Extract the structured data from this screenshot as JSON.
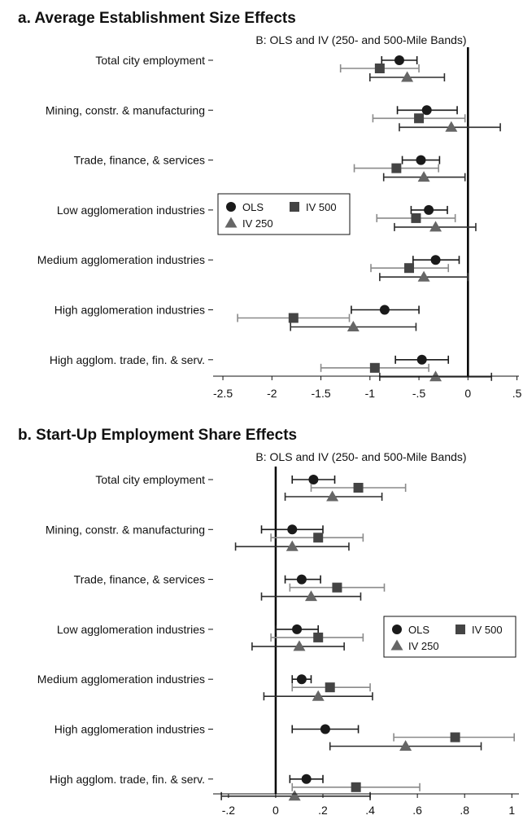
{
  "chart_data": [
    {
      "type": "scatter",
      "panel_title": "a. Average Establishment Size Effects",
      "subtitle": "B: OLS and IV (250- and 500-Mile Bands)",
      "categories": [
        "Total city employment",
        "Mining, constr. & manufacturing",
        "Trade, finance, & services",
        "Low agglomeration industries",
        "Medium agglomeration industries",
        "High agglomeration industries",
        "High agglom. trade, fin. & serv."
      ],
      "xlim": [
        -2.6,
        0.52
      ],
      "xticks": [
        -2.5,
        -2,
        -1.5,
        -1,
        -0.5,
        0,
        0.5
      ],
      "xtick_labels": [
        "-2.5",
        "-2",
        "-1.5",
        "-1",
        "-.5",
        "0",
        ".5"
      ],
      "reference_line": 0,
      "legend": {
        "position": "middle-left",
        "labels": [
          "OLS",
          "IV 500",
          "IV 250"
        ]
      },
      "series": [
        {
          "name": "OLS",
          "marker": "circle",
          "color": "#1a1a1a",
          "values": [
            -0.7,
            -0.42,
            -0.48,
            -0.4,
            -0.33,
            -0.85,
            -0.47
          ],
          "ci_low": [
            -0.88,
            -0.72,
            -0.67,
            -0.58,
            -0.56,
            -1.19,
            -0.74
          ],
          "ci_high": [
            -0.52,
            -0.11,
            -0.29,
            -0.21,
            -0.09,
            -0.5,
            -0.2
          ]
        },
        {
          "name": "IV 500",
          "marker": "square",
          "color": "#444444",
          "values": [
            -0.9,
            -0.5,
            -0.73,
            -0.53,
            -0.6,
            -1.78,
            -0.95
          ],
          "ci_low": [
            -1.3,
            -0.97,
            -1.16,
            -0.93,
            -0.99,
            -2.35,
            -1.5
          ],
          "ci_high": [
            -0.5,
            -0.03,
            -0.3,
            -0.13,
            -0.2,
            -1.21,
            -0.4
          ]
        },
        {
          "name": "IV 250",
          "marker": "triangle",
          "color": "#666666",
          "values": [
            -0.62,
            -0.17,
            -0.45,
            -0.33,
            -0.45,
            -1.17,
            -0.33
          ],
          "ci_low": [
            -1.0,
            -0.7,
            -0.86,
            -0.75,
            -0.9,
            -1.81,
            -0.9
          ],
          "ci_high": [
            -0.24,
            0.33,
            -0.03,
            0.08,
            0.0,
            -0.53,
            0.24
          ]
        }
      ]
    },
    {
      "type": "scatter",
      "panel_title": "b. Start-Up Employment Share Effects",
      "subtitle": "B: OLS and IV (250- and 500-Mile Bands)",
      "categories": [
        "Total city employment",
        "Mining, constr. & manufacturing",
        "Trade, finance, & services",
        "Low agglomeration industries",
        "Medium agglomeration industries",
        "High agglomeration industries",
        "High agglom. trade, fin. & serv."
      ],
      "xlim": [
        -0.265,
        1.03
      ],
      "xticks": [
        -0.2,
        0,
        0.2,
        0.4,
        0.6,
        0.8,
        1
      ],
      "xtick_labels": [
        "-.2",
        "0",
        ".2",
        ".4",
        ".6",
        ".8",
        "1"
      ],
      "reference_line": 0,
      "legend": {
        "position": "middle-right",
        "labels": [
          "OLS",
          "IV 500",
          "IV 250"
        ]
      },
      "series": [
        {
          "name": "OLS",
          "marker": "circle",
          "color": "#1a1a1a",
          "values": [
            0.16,
            0.07,
            0.11,
            0.09,
            0.11,
            0.21,
            0.13
          ],
          "ci_low": [
            0.07,
            -0.06,
            0.04,
            0.0,
            0.07,
            0.07,
            0.06
          ],
          "ci_high": [
            0.25,
            0.2,
            0.19,
            0.18,
            0.15,
            0.35,
            0.2
          ]
        },
        {
          "name": "IV 500",
          "marker": "square",
          "color": "#444444",
          "values": [
            0.35,
            0.18,
            0.26,
            0.18,
            0.23,
            0.76,
            0.34
          ],
          "ci_low": [
            0.15,
            -0.02,
            0.06,
            -0.02,
            0.07,
            0.5,
            0.07
          ],
          "ci_high": [
            0.55,
            0.37,
            0.46,
            0.37,
            0.4,
            1.01,
            0.61
          ]
        },
        {
          "name": "IV 250",
          "marker": "triangle",
          "color": "#666666",
          "values": [
            0.24,
            0.07,
            0.15,
            0.1,
            0.18,
            0.55,
            0.08
          ],
          "ci_low": [
            0.04,
            -0.17,
            -0.06,
            -0.1,
            -0.05,
            0.23,
            -0.23
          ],
          "ci_high": [
            0.45,
            0.31,
            0.36,
            0.29,
            0.41,
            0.87,
            0.4
          ]
        }
      ]
    }
  ]
}
